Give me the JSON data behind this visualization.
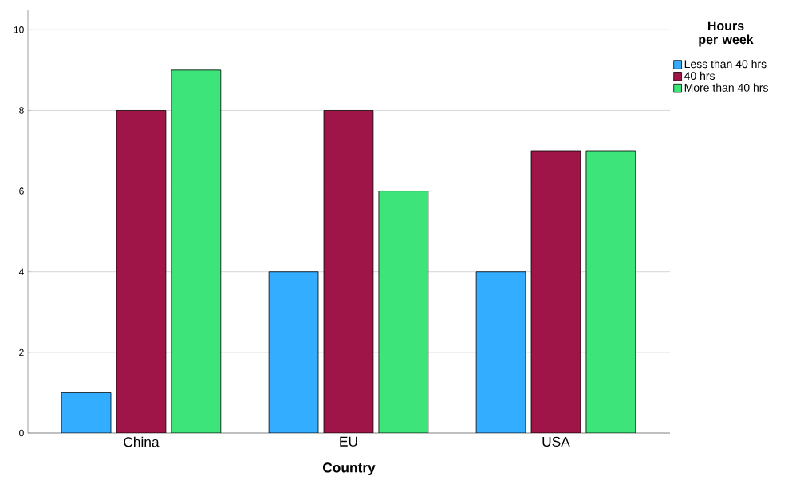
{
  "chart_data": {
    "type": "bar",
    "xlabel": "Country",
    "legend_title": "Hours per week",
    "categories": [
      "China",
      "EU",
      "USA"
    ],
    "series": [
      {
        "name": "Less than 40 hrs",
        "color": "#33adff",
        "values": [
          1,
          4,
          4
        ]
      },
      {
        "name": "40 hrs",
        "color": "#a01548",
        "values": [
          8,
          8,
          7
        ]
      },
      {
        "name": "More than 40 hrs",
        "color": "#3de47a",
        "values": [
          9,
          6,
          7
        ]
      }
    ],
    "ylim": [
      0,
      10.5
    ],
    "yticks": [
      0,
      2,
      4,
      6,
      8,
      10
    ],
    "grid": "y",
    "legend": "top right"
  }
}
